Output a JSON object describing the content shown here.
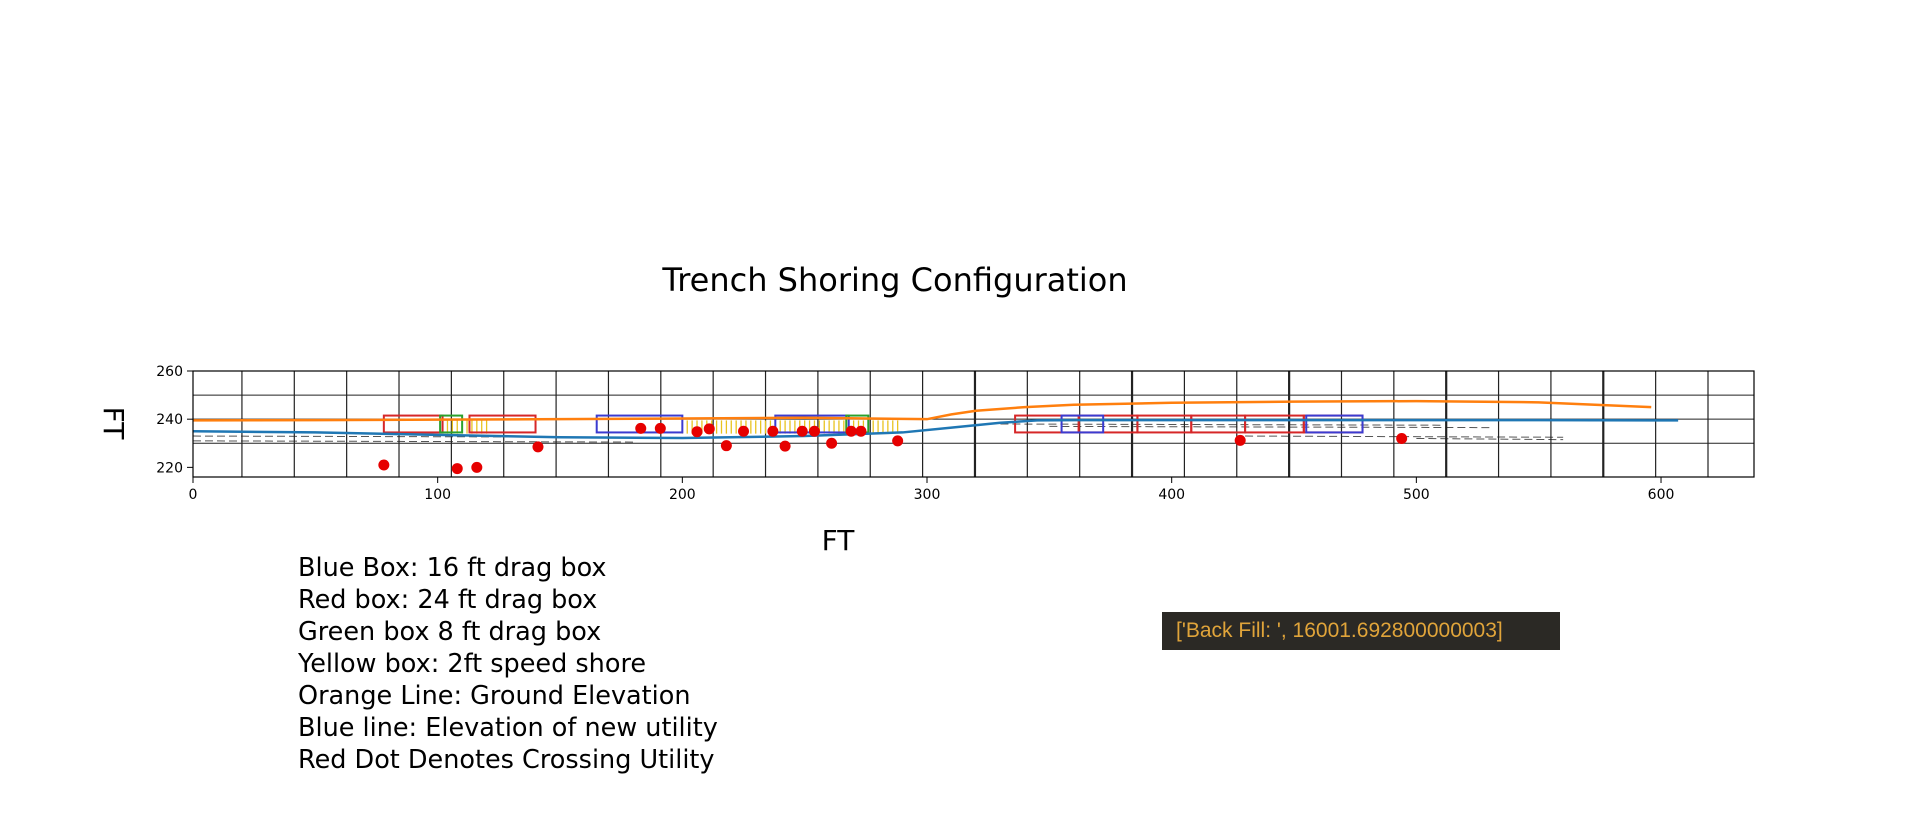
{
  "chart_data": {
    "type": "line",
    "title": "Trench Shoring Configuration",
    "xlabel": "FT",
    "ylabel": "FT",
    "xlim": [
      0,
      638
    ],
    "ylim": [
      216,
      260
    ],
    "x_ticks": [
      0,
      100,
      200,
      300,
      400,
      500,
      600
    ],
    "y_ticks": [
      220,
      240,
      260
    ],
    "grid": true,
    "colors": {
      "orange": "#ff7f0e",
      "blue": "#1f77b4",
      "red": "#e60000",
      "box_red": "#d62728",
      "box_blue": "#3b3bd0",
      "box_green": "#2ca02c",
      "box_yellow": "#e8c320"
    },
    "series": [
      {
        "x": [
          0,
          50,
          100,
          150,
          200,
          250,
          300,
          310,
          320,
          340,
          360,
          400,
          450,
          500,
          550,
          596
        ],
        "y": [
          239.5,
          239.6,
          239.8,
          240.0,
          240.3,
          240.6,
          240.0,
          242.0,
          243.5,
          245.0,
          246.0,
          246.8,
          247.3,
          247.5,
          247.0,
          245.0
        ]
      },
      {
        "x": [
          0,
          50,
          100,
          150,
          200,
          250,
          290,
          310,
          330,
          345,
          360,
          400,
          450,
          500,
          550,
          607
        ],
        "y": [
          235.0,
          234.5,
          233.5,
          232.5,
          232.2,
          233.0,
          234.5,
          236.5,
          238.5,
          239.5,
          239.6,
          239.6,
          239.6,
          239.6,
          239.6,
          239.5
        ]
      }
    ],
    "crossing_utilities": {
      "x": [
        78,
        108,
        116,
        141,
        183,
        191,
        206,
        211,
        218,
        225,
        237,
        242,
        249,
        254,
        261,
        269,
        273,
        288,
        428,
        494
      ],
      "y": [
        221.0,
        219.5,
        220.0,
        228.5,
        236.2,
        236.2,
        234.8,
        236.0,
        229.0,
        235.0,
        235.0,
        228.8,
        235.0,
        235.0,
        230.0,
        235.0,
        235.0,
        231.0,
        231.2,
        232.0
      ]
    },
    "boxes_16ft": [
      [
        165,
        200
      ],
      [
        238,
        268
      ],
      [
        355,
        372
      ],
      [
        455,
        478
      ]
    ],
    "boxes_24ft": [
      [
        78,
        102
      ],
      [
        113,
        140
      ],
      [
        336,
        362
      ],
      [
        362,
        386
      ],
      [
        386,
        408
      ],
      [
        408,
        430
      ],
      [
        430,
        454
      ],
      [
        454,
        478
      ]
    ],
    "boxes_8ft": [
      [
        101,
        110
      ],
      [
        267,
        276
      ]
    ],
    "speed_shore_x": [
      104,
      106,
      108,
      110,
      112,
      114,
      116,
      118,
      120,
      200,
      202,
      204,
      206,
      208,
      210,
      212,
      214,
      216,
      218,
      220,
      222,
      224,
      226,
      228,
      230,
      232,
      234,
      236,
      238,
      240,
      242,
      244,
      246,
      248,
      250,
      252,
      254,
      256,
      258,
      260,
      262,
      264,
      266,
      270,
      272,
      274,
      276,
      278,
      280,
      282,
      284,
      286,
      288
    ]
  },
  "legend": [
    "Blue Box: 16 ft drag box",
    "Red box: 24 ft drag box",
    "Green box 8 ft drag box",
    "Yellow box: 2ft speed shore",
    "Orange Line: Ground Elevation",
    "Blue line: Elevation of new utility",
    "Red Dot Denotes Crossing Utility"
  ],
  "backfill_label": "['Back Fill: ', 16001.692800000003]"
}
